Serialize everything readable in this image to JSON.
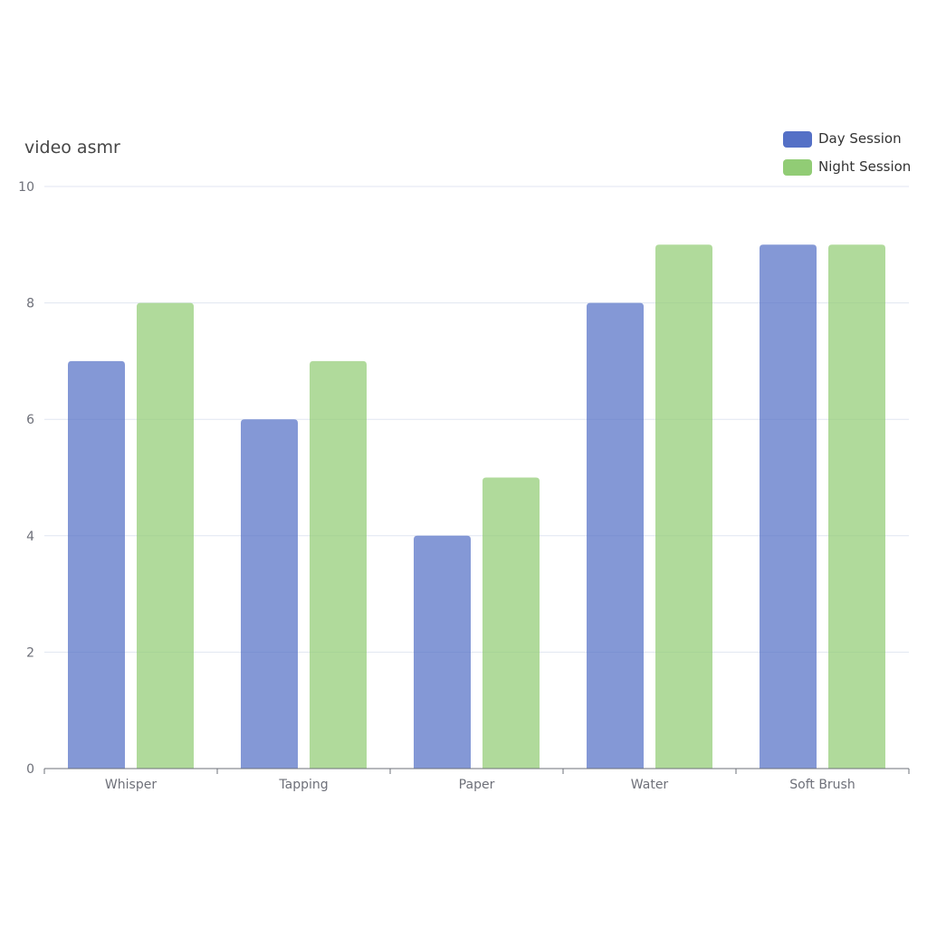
{
  "chart_data": {
    "type": "bar",
    "title": "video asmr",
    "categories": [
      "Whisper",
      "Tapping",
      "Paper",
      "Water",
      "Soft Brush"
    ],
    "series": [
      {
        "name": "Day Session",
        "values": [
          7,
          6,
          4,
          8,
          9
        ],
        "color": "#5470c6"
      },
      {
        "name": "Night Session",
        "values": [
          8,
          7,
          5,
          9,
          9
        ],
        "color": "#91cc75"
      }
    ],
    "ylim": [
      0,
      10
    ],
    "yticks": [
      0,
      2,
      4,
      6,
      8,
      10
    ],
    "grid": true,
    "legend_position": "top-right"
  }
}
